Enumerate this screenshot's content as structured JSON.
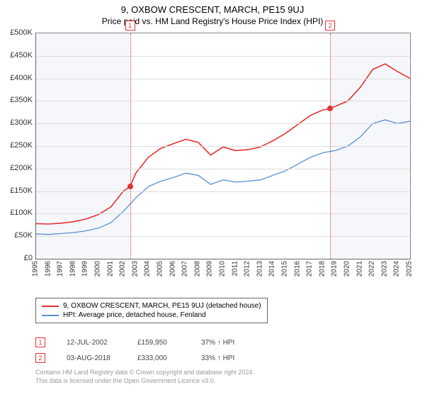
{
  "title": "9, OXBOW CRESCENT, MARCH, PE15 9UJ",
  "subtitle": "Price paid vs. HM Land Registry's House Price Index (HPI)",
  "chart": {
    "type": "line",
    "background_color": "#ffffff",
    "plot_shade_color": "#f5f7fb",
    "grid_color": "#dddddd",
    "x": {
      "min": 1995,
      "max": 2025,
      "ticks": [
        1995,
        1996,
        1997,
        1998,
        1999,
        2000,
        2001,
        2002,
        2003,
        2004,
        2005,
        2006,
        2007,
        2008,
        2009,
        2010,
        2011,
        2012,
        2013,
        2014,
        2015,
        2016,
        2017,
        2018,
        2019,
        2020,
        2021,
        2022,
        2023,
        2024,
        2025
      ]
    },
    "y": {
      "min": 0,
      "max": 500000,
      "step": 50000,
      "labels": [
        "£0",
        "£50K",
        "£100K",
        "£150K",
        "£200K",
        "£250K",
        "£300K",
        "£350K",
        "£400K",
        "£450K",
        "£500K"
      ]
    },
    "shade_bands": [
      {
        "from": 1995,
        "to": 2002.53
      },
      {
        "from": 2018.59,
        "to": 2025
      }
    ],
    "vlines": [
      {
        "x": 2002.53,
        "label": "1"
      },
      {
        "x": 2018.59,
        "label": "2"
      }
    ],
    "series": [
      {
        "name": "property",
        "label": "9, OXBOW CRESCENT, MARCH, PE15 9UJ (detached house)",
        "color": "#e83030",
        "line_width": 1.6,
        "points": [
          [
            1995,
            78000
          ],
          [
            1996,
            77000
          ],
          [
            1997,
            79000
          ],
          [
            1998,
            82000
          ],
          [
            1999,
            88000
          ],
          [
            2000,
            98000
          ],
          [
            2001,
            115000
          ],
          [
            2002,
            150000
          ],
          [
            2002.53,
            159950
          ],
          [
            2003,
            190000
          ],
          [
            2004,
            225000
          ],
          [
            2005,
            245000
          ],
          [
            2006,
            255000
          ],
          [
            2007,
            265000
          ],
          [
            2008,
            258000
          ],
          [
            2009,
            230000
          ],
          [
            2010,
            248000
          ],
          [
            2011,
            240000
          ],
          [
            2012,
            242000
          ],
          [
            2013,
            248000
          ],
          [
            2014,
            262000
          ],
          [
            2015,
            278000
          ],
          [
            2016,
            298000
          ],
          [
            2017,
            318000
          ],
          [
            2018,
            330000
          ],
          [
            2018.59,
            333000
          ],
          [
            2019,
            338000
          ],
          [
            2020,
            350000
          ],
          [
            2021,
            380000
          ],
          [
            2022,
            420000
          ],
          [
            2023,
            432000
          ],
          [
            2024,
            415000
          ],
          [
            2025,
            400000
          ]
        ]
      },
      {
        "name": "hpi",
        "label": "HPI: Average price, detached house, Fenland",
        "color": "#5a8fd6",
        "line_width": 1.3,
        "points": [
          [
            1995,
            55000
          ],
          [
            1996,
            54000
          ],
          [
            1997,
            56000
          ],
          [
            1998,
            58000
          ],
          [
            1999,
            62000
          ],
          [
            2000,
            68000
          ],
          [
            2001,
            80000
          ],
          [
            2002,
            105000
          ],
          [
            2003,
            135000
          ],
          [
            2004,
            160000
          ],
          [
            2005,
            172000
          ],
          [
            2006,
            180000
          ],
          [
            2007,
            190000
          ],
          [
            2008,
            185000
          ],
          [
            2009,
            165000
          ],
          [
            2010,
            175000
          ],
          [
            2011,
            170000
          ],
          [
            2012,
            172000
          ],
          [
            2013,
            175000
          ],
          [
            2014,
            185000
          ],
          [
            2015,
            195000
          ],
          [
            2016,
            210000
          ],
          [
            2017,
            225000
          ],
          [
            2018,
            235000
          ],
          [
            2019,
            240000
          ],
          [
            2020,
            250000
          ],
          [
            2021,
            270000
          ],
          [
            2022,
            300000
          ],
          [
            2023,
            308000
          ],
          [
            2024,
            300000
          ],
          [
            2025,
            305000
          ]
        ]
      }
    ],
    "sale_points": [
      {
        "x": 2002.53,
        "y": 159950,
        "color": "#e83030"
      },
      {
        "x": 2018.59,
        "y": 333000,
        "color": "#e83030"
      }
    ]
  },
  "legend": {
    "items": [
      {
        "color": "#e83030",
        "label": "9, OXBOW CRESCENT, MARCH, PE15 9UJ (detached house)"
      },
      {
        "color": "#5a8fd6",
        "label": "HPI: Average price, detached house, Fenland"
      }
    ]
  },
  "sales": [
    {
      "n": "1",
      "date": "12-JUL-2002",
      "price": "£159,950",
      "hpi": "37% ↑ HPI"
    },
    {
      "n": "2",
      "date": "03-AUG-2018",
      "price": "£333,000",
      "hpi": "33% ↑ HPI"
    }
  ],
  "footer": {
    "line1": "Contains HM Land Registry data © Crown copyright and database right 2024.",
    "line2": "This data is licensed under the Open Government Licence v3.0."
  }
}
